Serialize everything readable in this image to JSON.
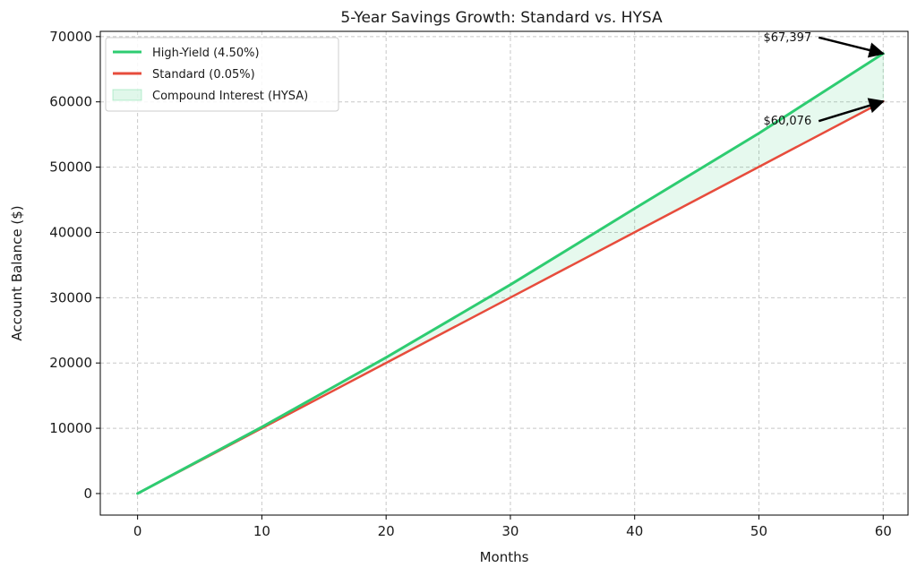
{
  "chart_data": {
    "type": "line",
    "title": "5-Year Savings Growth: Standard vs. HYSA",
    "xlabel": "Months",
    "ylabel": "Account Balance ($)",
    "xlim": [
      -3,
      62
    ],
    "ylim": [
      -3300,
      70800
    ],
    "xticks": [
      0,
      10,
      20,
      30,
      40,
      50,
      60
    ],
    "yticks": [
      0,
      10000,
      20000,
      30000,
      40000,
      50000,
      60000,
      70000
    ],
    "grid": true,
    "legend_position": "top-left",
    "series": [
      {
        "name": "High-Yield (4.50%)",
        "color": "#2ecc71",
        "x": [
          0,
          10,
          20,
          30,
          40,
          50,
          60
        ],
        "values": [
          0,
          10190,
          20850,
          31990,
          43660,
          55190,
          67397
        ]
      },
      {
        "name": "Standard (0.05%)",
        "color": "#e74c3c",
        "x": [
          0,
          10,
          20,
          30,
          40,
          50,
          60
        ],
        "values": [
          0,
          10000,
          20010,
          30020,
          40030,
          50050,
          60076
        ]
      }
    ],
    "fill_between": {
      "name": "Compound Interest (HYSA)",
      "color": "#2ecc71"
    },
    "annotations": [
      {
        "text": "$67,397",
        "x": 60,
        "y": 67397
      },
      {
        "text": "$60,076",
        "x": 60,
        "y": 60076
      }
    ]
  }
}
